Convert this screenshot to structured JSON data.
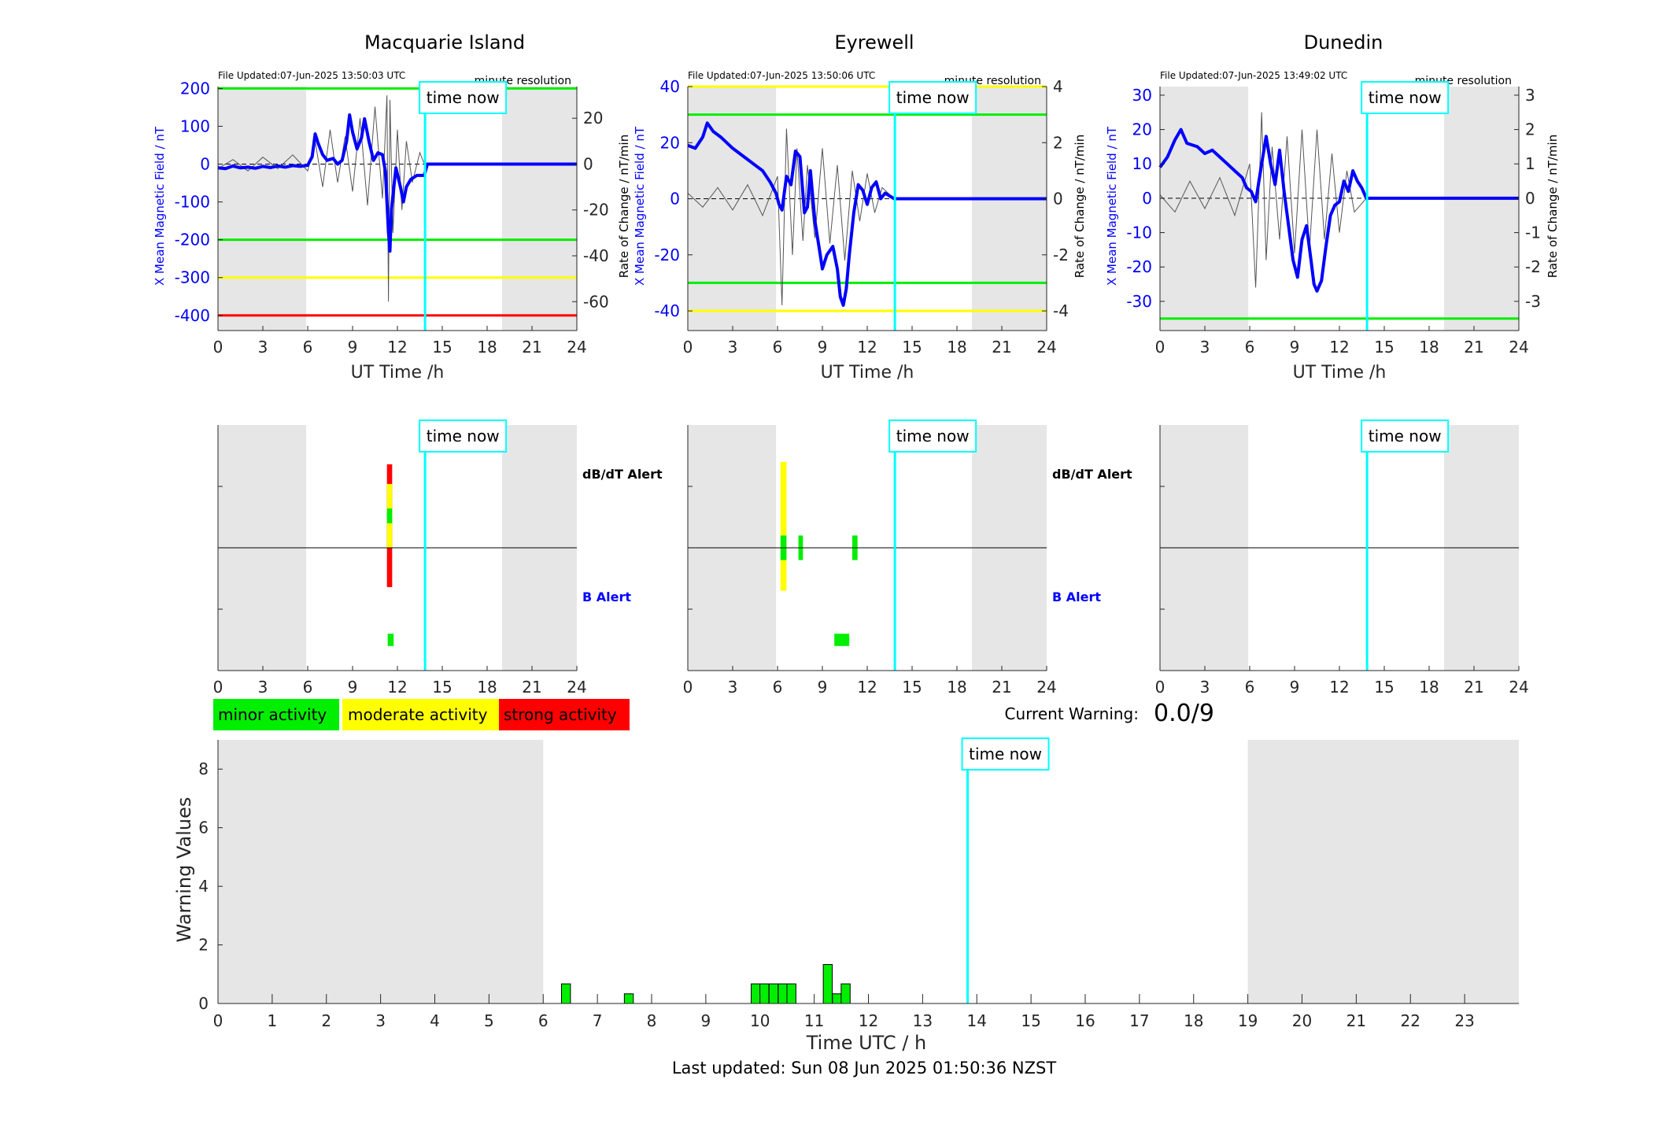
{
  "colors": {
    "field_line": "#0000ff",
    "rate_line": "#555555",
    "green": "#00ee00",
    "yellow": "#ffff00",
    "red": "#ff0000",
    "time_now": "#00ffff",
    "shade": "#e6e6e6",
    "axis": "#262626"
  },
  "stations": [
    {
      "title": "Macquarie Island",
      "file_updated": "File Updated:07-Jun-2025 13:50:03 UTC",
      "resolution": "minute resolution",
      "ylabel_left": "X Mean Magnetic Field / nT",
      "ylabel_right": "Rate of Change / nT/min",
      "xlabel": "UT Time /h",
      "y_range": [
        -440,
        205
      ],
      "y_ticks": [
        "200",
        "100",
        "0",
        "-100",
        "-200",
        "-300",
        "-400"
      ],
      "y_tick_values": [
        200,
        100,
        0,
        -100,
        -200,
        -300,
        -400
      ],
      "r_range": [
        -72.6,
        33.8
      ],
      "r_ticks": [
        "20",
        "0",
        "-20",
        "-40",
        "-60"
      ],
      "r_tick_values": [
        20,
        0,
        -20,
        -40,
        -60
      ],
      "thresholds": [
        {
          "value": 200,
          "color": "green"
        },
        {
          "value": -200,
          "color": "green"
        },
        {
          "value": -300,
          "color": "yellow"
        },
        {
          "value": -400,
          "color": "red"
        }
      ],
      "x_ticks": [
        "0",
        "3",
        "6",
        "9",
        "12",
        "15",
        "18",
        "21",
        "24"
      ],
      "time_now_label": "time now",
      "field_series": [
        [
          0,
          -10
        ],
        [
          0.5,
          -12
        ],
        [
          1,
          -5
        ],
        [
          1.5,
          -10
        ],
        [
          2,
          -8
        ],
        [
          2.5,
          -11
        ],
        [
          3,
          -6
        ],
        [
          3.5,
          -9
        ],
        [
          4,
          -5
        ],
        [
          4.5,
          -8
        ],
        [
          5,
          -4
        ],
        [
          5.5,
          -6
        ],
        [
          6,
          -3
        ],
        [
          6.3,
          20
        ],
        [
          6.5,
          80
        ],
        [
          6.7,
          55
        ],
        [
          7,
          25
        ],
        [
          7.3,
          10
        ],
        [
          7.7,
          15
        ],
        [
          8,
          0
        ],
        [
          8.3,
          10
        ],
        [
          8.6,
          60
        ],
        [
          8.8,
          130
        ],
        [
          9,
          85
        ],
        [
          9.3,
          40
        ],
        [
          9.6,
          70
        ],
        [
          9.8,
          120
        ],
        [
          10.1,
          60
        ],
        [
          10.4,
          10
        ],
        [
          10.7,
          30
        ],
        [
          11,
          25
        ],
        [
          11.2,
          -20
        ],
        [
          11.4,
          -180
        ],
        [
          11.5,
          -230
        ],
        [
          11.6,
          -120
        ],
        [
          11.9,
          -10
        ],
        [
          12.2,
          -60
        ],
        [
          12.4,
          -100
        ],
        [
          12.6,
          -60
        ],
        [
          12.9,
          -40
        ],
        [
          13.3,
          -30
        ],
        [
          13.8,
          -30
        ],
        [
          14,
          0
        ],
        [
          24,
          0
        ]
      ],
      "rate_series": [
        [
          0,
          -2
        ],
        [
          1,
          2
        ],
        [
          2,
          -3
        ],
        [
          3,
          3
        ],
        [
          4,
          -2
        ],
        [
          5,
          4
        ],
        [
          6,
          -3
        ],
        [
          6.5,
          10
        ],
        [
          7,
          -10
        ],
        [
          7.5,
          15
        ],
        [
          8,
          -8
        ],
        [
          8.5,
          12
        ],
        [
          9,
          -12
        ],
        [
          9.5,
          20
        ],
        [
          10,
          -18
        ],
        [
          10.5,
          25
        ],
        [
          11,
          -15
        ],
        [
          11.3,
          30
        ],
        [
          11.4,
          -60
        ],
        [
          11.5,
          28
        ],
        [
          11.7,
          -30
        ],
        [
          12,
          15
        ],
        [
          12.3,
          -20
        ],
        [
          12.6,
          10
        ],
        [
          13,
          -8
        ],
        [
          13.5,
          5
        ],
        [
          13.8,
          0
        ]
      ],
      "shade": [
        [
          0,
          5.9
        ],
        [
          19,
          24
        ]
      ],
      "time_now": 13.85,
      "alert_labels": {
        "dbdt": "dB/dT Alert",
        "b": "B Alert"
      },
      "dbdt_alerts": [
        {
          "start": 11.3,
          "end": 11.65,
          "band": "red",
          "low": 0.68,
          "high": 1.68
        },
        {
          "start": 11.3,
          "end": 11.65,
          "band": "yellow",
          "low": 1.0,
          "high": 1.52
        },
        {
          "start": 11.3,
          "end": 11.65,
          "band": "green",
          "low": 1.2,
          "high": 1.32
        }
      ],
      "b_alerts": [
        {
          "start": 11.35,
          "end": 11.75,
          "band": "green",
          "low": 0.2,
          "high": 0.3
        }
      ]
    },
    {
      "title": "Eyrewell",
      "file_updated": "File Updated:07-Jun-2025 13:50:06 UTC",
      "resolution": "minute resolution",
      "ylabel_left": "X Mean Magnetic Field / nT",
      "ylabel_right": "Rate of Change / nT/min",
      "xlabel": "UT Time /h",
      "y_range": [
        -47,
        40
      ],
      "y_ticks": [
        "40",
        "20",
        "0",
        "-20",
        "-40"
      ],
      "y_tick_values": [
        40,
        20,
        0,
        -20,
        -40
      ],
      "r_range": [
        -4.7,
        4.0
      ],
      "r_ticks": [
        "4",
        "2",
        "0",
        "-2",
        "-4"
      ],
      "r_tick_values": [
        4,
        2,
        0,
        -2,
        -4
      ],
      "thresholds": [
        {
          "value": 40,
          "color": "yellow"
        },
        {
          "value": 30,
          "color": "green"
        },
        {
          "value": -30,
          "color": "green"
        },
        {
          "value": -40,
          "color": "yellow"
        }
      ],
      "x_ticks": [
        "0",
        "3",
        "6",
        "9",
        "12",
        "15",
        "18",
        "21",
        "24"
      ],
      "time_now_label": "time now",
      "field_series": [
        [
          0,
          19
        ],
        [
          0.5,
          18
        ],
        [
          1,
          22
        ],
        [
          1.3,
          27
        ],
        [
          1.7,
          24
        ],
        [
          2.2,
          22
        ],
        [
          3,
          18
        ],
        [
          3.5,
          16
        ],
        [
          4,
          14
        ],
        [
          4.5,
          12
        ],
        [
          5,
          10
        ],
        [
          5.5,
          6
        ],
        [
          5.9,
          2
        ],
        [
          6.1,
          -2
        ],
        [
          6.3,
          -4
        ],
        [
          6.6,
          8
        ],
        [
          6.9,
          5
        ],
        [
          7.2,
          17
        ],
        [
          7.5,
          15
        ],
        [
          7.8,
          -5
        ],
        [
          8,
          -3
        ],
        [
          8.2,
          10
        ],
        [
          8.5,
          -8
        ],
        [
          8.8,
          -18
        ],
        [
          9,
          -25
        ],
        [
          9.3,
          -20
        ],
        [
          9.7,
          -17
        ],
        [
          10,
          -25
        ],
        [
          10.2,
          -35
        ],
        [
          10.4,
          -38
        ],
        [
          10.6,
          -32
        ],
        [
          10.8,
          -20
        ],
        [
          11.1,
          -5
        ],
        [
          11.4,
          5
        ],
        [
          11.7,
          3
        ],
        [
          12,
          -2
        ],
        [
          12.3,
          4
        ],
        [
          12.6,
          6
        ],
        [
          12.9,
          0
        ],
        [
          13.2,
          2
        ],
        [
          13.8,
          0
        ],
        [
          24,
          0
        ]
      ],
      "rate_series": [
        [
          0,
          0.2
        ],
        [
          1,
          -0.3
        ],
        [
          2,
          0.4
        ],
        [
          3,
          -0.4
        ],
        [
          4,
          0.5
        ],
        [
          5,
          -0.6
        ],
        [
          6,
          0.8
        ],
        [
          6.3,
          -3.8
        ],
        [
          6.6,
          2.5
        ],
        [
          7,
          -2
        ],
        [
          7.3,
          1.8
        ],
        [
          7.7,
          -1.5
        ],
        [
          8,
          1.2
        ],
        [
          8.5,
          -1.4
        ],
        [
          9,
          1.8
        ],
        [
          9.5,
          -1.6
        ],
        [
          10,
          1.2
        ],
        [
          10.5,
          -2.2
        ],
        [
          11,
          1.0
        ],
        [
          11.5,
          -0.8
        ],
        [
          12,
          0.9
        ],
        [
          12.5,
          -0.5
        ],
        [
          13,
          0.4
        ],
        [
          13.8,
          0
        ]
      ],
      "shade": [
        [
          0,
          5.9
        ],
        [
          19,
          24
        ]
      ],
      "time_now": 13.85,
      "alert_labels": {
        "dbdt": "dB/dT Alert",
        "b": "B Alert"
      },
      "dbdt_alerts": [
        {
          "start": 6.2,
          "end": 6.6,
          "band": "yellow",
          "low": 0.65,
          "high": 1.7
        },
        {
          "start": 6.2,
          "end": 6.6,
          "band": "green",
          "low": 0.9,
          "high": 1.1
        },
        {
          "start": 7.4,
          "end": 7.7,
          "band": "green",
          "low": 0.9,
          "high": 1.1
        },
        {
          "start": 11.0,
          "end": 11.35,
          "band": "green",
          "low": 0.9,
          "high": 1.1
        }
      ],
      "b_alerts": [
        {
          "start": 9.8,
          "end": 10.8,
          "band": "green",
          "low": 0.2,
          "high": 0.3
        }
      ]
    },
    {
      "title": "Dunedin",
      "file_updated": "File Updated:07-Jun-2025 13:49:02 UTC",
      "resolution": "minute resolution",
      "ylabel_left": "X Mean Magnetic Field / nT",
      "ylabel_right": "Rate of Change / nT/min",
      "xlabel": "UT Time /h",
      "y_range": [
        -38.5,
        32.5
      ],
      "y_ticks": [
        "30",
        "20",
        "10",
        "0",
        "-10",
        "-20",
        "-30"
      ],
      "y_tick_values": [
        30,
        20,
        10,
        0,
        -10,
        -20,
        -30
      ],
      "r_range": [
        -3.85,
        3.25
      ],
      "r_ticks": [
        "3",
        "2",
        "1",
        "0",
        "-1",
        "-2",
        "-3"
      ],
      "r_tick_values": [
        3,
        2,
        1,
        0,
        -1,
        -2,
        -3
      ],
      "thresholds": [
        {
          "value": -35,
          "color": "green"
        }
      ],
      "x_ticks": [
        "0",
        "3",
        "6",
        "9",
        "12",
        "15",
        "18",
        "21",
        "24"
      ],
      "time_now_label": "time now",
      "field_series": [
        [
          0,
          9
        ],
        [
          0.5,
          12
        ],
        [
          1,
          17
        ],
        [
          1.4,
          20
        ],
        [
          1.8,
          16
        ],
        [
          2.5,
          15
        ],
        [
          3,
          13
        ],
        [
          3.5,
          14
        ],
        [
          4,
          12
        ],
        [
          4.5,
          10
        ],
        [
          5,
          8
        ],
        [
          5.5,
          6
        ],
        [
          5.8,
          3
        ],
        [
          6.1,
          2
        ],
        [
          6.4,
          -1
        ],
        [
          6.8,
          10
        ],
        [
          7.1,
          18
        ],
        [
          7.4,
          10
        ],
        [
          7.7,
          4
        ],
        [
          8,
          14
        ],
        [
          8.3,
          2
        ],
        [
          8.6,
          -8
        ],
        [
          8.9,
          -18
        ],
        [
          9.2,
          -23
        ],
        [
          9.5,
          -12
        ],
        [
          9.8,
          -8
        ],
        [
          10.1,
          -18
        ],
        [
          10.3,
          -25
        ],
        [
          10.5,
          -27
        ],
        [
          10.8,
          -24
        ],
        [
          11.1,
          -14
        ],
        [
          11.4,
          -5
        ],
        [
          11.7,
          -2
        ],
        [
          12,
          -1
        ],
        [
          12.3,
          5
        ],
        [
          12.6,
          2
        ],
        [
          12.9,
          8
        ],
        [
          13.2,
          5
        ],
        [
          13.5,
          3
        ],
        [
          13.8,
          0
        ],
        [
          24,
          0
        ]
      ],
      "rate_series": [
        [
          0,
          0.1
        ],
        [
          1,
          -0.4
        ],
        [
          2,
          0.5
        ],
        [
          3,
          -0.3
        ],
        [
          4,
          0.6
        ],
        [
          5,
          -0.5
        ],
        [
          6,
          1.0
        ],
        [
          6.4,
          -2.6
        ],
        [
          6.8,
          2.5
        ],
        [
          7.1,
          -1.8
        ],
        [
          7.5,
          1.5
        ],
        [
          8,
          -1.2
        ],
        [
          8.5,
          1.8
        ],
        [
          9,
          -1.6
        ],
        [
          9.5,
          2.0
        ],
        [
          10,
          -1.5
        ],
        [
          10.5,
          2.0
        ],
        [
          11,
          -1.2
        ],
        [
          11.5,
          1.3
        ],
        [
          12,
          -1.0
        ],
        [
          12.5,
          0.8
        ],
        [
          13,
          -0.4
        ],
        [
          13.8,
          0
        ]
      ],
      "shade": [
        [
          0,
          5.9
        ],
        [
          19,
          24
        ]
      ],
      "time_now": 13.85,
      "alert_labels": {
        "dbdt": "dB/dT Alert",
        "b": "B Alert"
      },
      "dbdt_alerts": [],
      "b_alerts": []
    }
  ],
  "legend": [
    {
      "label": "minor activity",
      "color": "green"
    },
    {
      "label": "moderate activity",
      "color": "yellow"
    },
    {
      "label": "strong activity",
      "color": "red"
    }
  ],
  "current_warning": {
    "label": "Current Warning:",
    "value": "0.0/9"
  },
  "warning_chart": {
    "ylabel": "Warning Values",
    "xlabel": "Time UTC / h",
    "y_ticks": [
      "0",
      "2",
      "4",
      "6",
      "8"
    ],
    "x_ticks": [
      "0",
      "1",
      "2",
      "3",
      "4",
      "5",
      "6",
      "7",
      "8",
      "9",
      "10",
      "11",
      "12",
      "13",
      "14",
      "15",
      "16",
      "17",
      "18",
      "19",
      "20",
      "21",
      "22",
      "23"
    ],
    "time_now_label": "time now",
    "time_now": 13.83,
    "shade": [
      [
        0,
        6
      ],
      [
        19,
        24
      ]
    ]
  },
  "chart_data": {
    "type": "bar",
    "title": "",
    "xlabel": "Time UTC / h",
    "ylabel": "Warning Values",
    "xlim": [
      0,
      24
    ],
    "ylim": [
      0,
      9
    ],
    "bar_width_h": 0.166,
    "x": [
      6.42,
      7.58,
      9.92,
      10.08,
      10.25,
      10.42,
      10.58,
      11.25,
      11.42,
      11.58
    ],
    "values": [
      0.67,
      0.33,
      0.67,
      0.67,
      0.67,
      0.67,
      0.67,
      1.33,
      0.33,
      0.67
    ]
  },
  "footer": {
    "last_updated": "Last updated: Sun 08 Jun 2025 01:50:36 NZST"
  }
}
